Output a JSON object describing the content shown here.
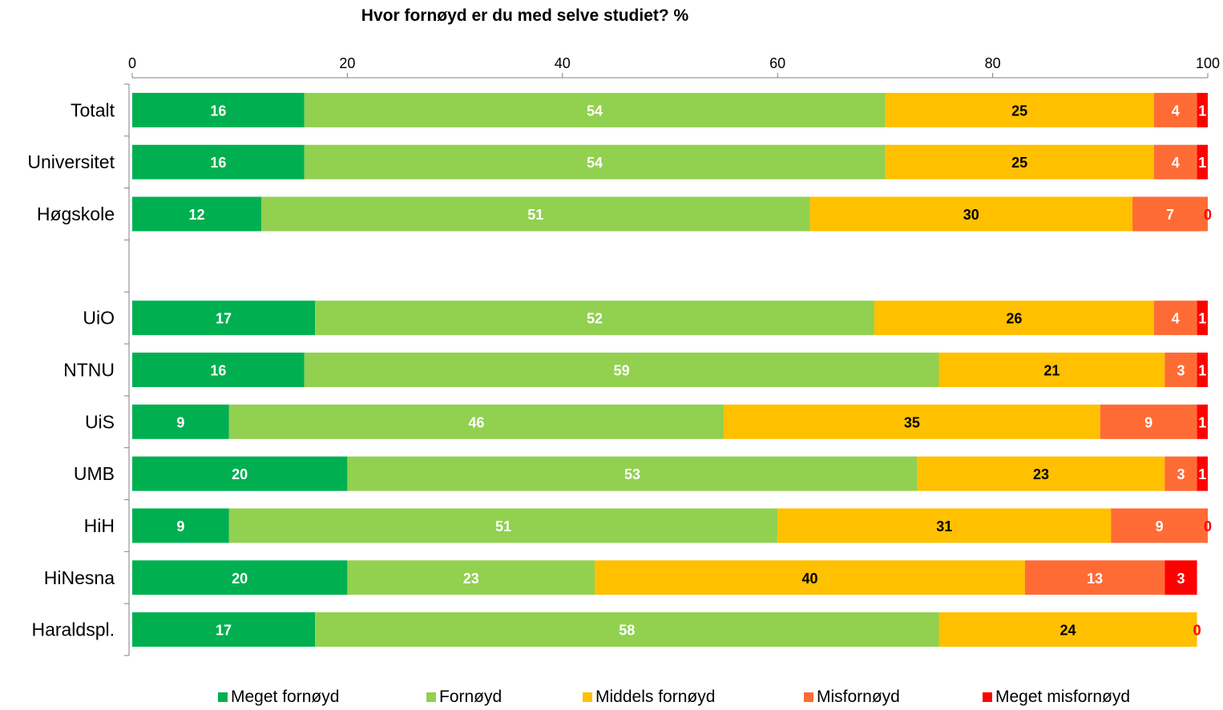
{
  "chart_data": {
    "type": "bar",
    "orientation": "horizontal",
    "stacked": true,
    "title": "Hvor fornøyd er du med selve studiet? %",
    "xlim": [
      0,
      100
    ],
    "xticks": [
      "0",
      "20",
      "40",
      "60",
      "80",
      "100"
    ],
    "categories": [
      "Totalt",
      "Universitet",
      "Høgskole",
      "",
      "UiO",
      "NTNU",
      "UiS",
      "UMB",
      "HiH",
      "HiNesna",
      "Haraldspl."
    ],
    "series": [
      {
        "name": "Meget fornøyd",
        "color": "#00b050",
        "label_color": "#ffffff",
        "values": [
          16,
          16,
          12,
          null,
          17,
          16,
          9,
          20,
          9,
          20,
          17
        ]
      },
      {
        "name": "Fornøyd",
        "color": "#92d050",
        "label_color": "#ffffff",
        "values": [
          54,
          54,
          51,
          null,
          52,
          59,
          46,
          53,
          51,
          23,
          58
        ]
      },
      {
        "name": "Middels fornøyd",
        "color": "#ffc000",
        "label_color": "#000000",
        "values": [
          25,
          25,
          30,
          null,
          26,
          21,
          35,
          23,
          31,
          40,
          24
        ]
      },
      {
        "name": "Misfornøyd",
        "color": "#ff6b35",
        "label_color": "#ffffff",
        "values": [
          4,
          4,
          7,
          null,
          4,
          3,
          9,
          3,
          9,
          13,
          0
        ]
      },
      {
        "name": "Meget misfornøyd",
        "color": "#ff0000",
        "label_color": "#ffffff",
        "values": [
          1,
          1,
          0,
          null,
          1,
          1,
          1,
          1,
          0,
          3,
          0
        ]
      }
    ],
    "grid": false,
    "legend": "bottom"
  }
}
